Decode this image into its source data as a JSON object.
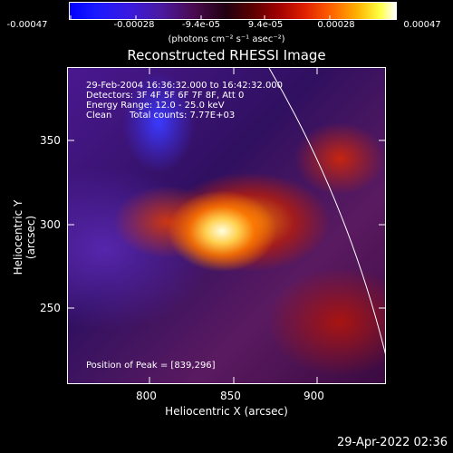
{
  "colorbar": {
    "tick_labels": [
      "-0.00047",
      "-0.00028",
      "-9.4e-05",
      "9.4e-05",
      "0.00028",
      "0.00047"
    ],
    "units": "(photons cm⁻² s⁻¹ asec⁻²)"
  },
  "title": "Reconstructed RHESSI Image",
  "info": {
    "time_range": "29-Feb-2004 16:36:32.000 to 16:42:32.000",
    "detectors": "Detectors: 3F 4F 5F 6F 7F 8F, Att 0",
    "energy": "Energy Range: 12.0 - 25.0 keV",
    "method": "Clean",
    "counts": "Total counts: 7.77E+03",
    "peak": "Position of Peak = [839,296]"
  },
  "axes": {
    "xlabel": "Heliocentric X (arcsec)",
    "ylabel": "Heliocentric Y (arcsec)",
    "x_ticks": [
      "800",
      "850",
      "900"
    ],
    "y_ticks": [
      "350",
      "300",
      "250"
    ]
  },
  "timestamp": "29-Apr-2022 02:36"
}
